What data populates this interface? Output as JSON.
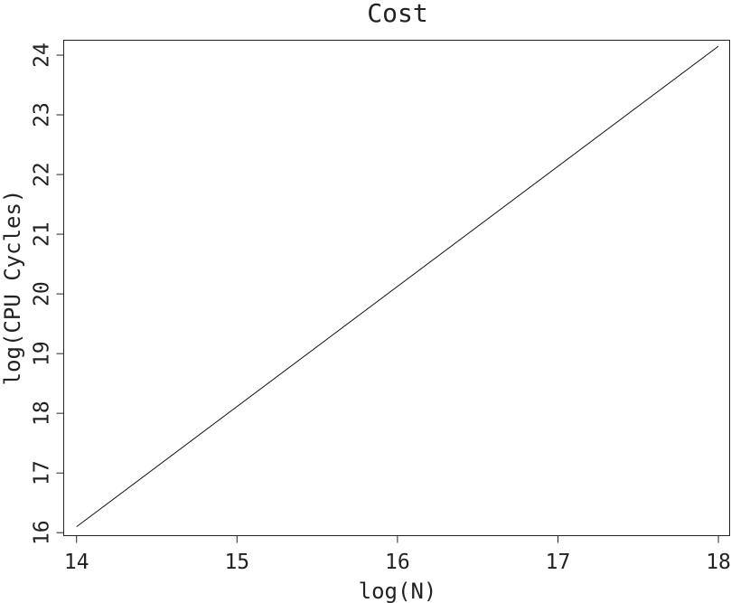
{
  "chart_data": {
    "type": "line",
    "title": "Cost",
    "xlabel": "log(N)",
    "ylabel": "log(CPU Cycles)",
    "xlim": [
      13.92,
      18.07
    ],
    "ylim": [
      15.95,
      24.25
    ],
    "x_ticks": [
      14,
      15,
      16,
      17,
      18
    ],
    "y_ticks": [
      16,
      17,
      18,
      19,
      20,
      21,
      22,
      23,
      24
    ],
    "grid": false,
    "series": [
      {
        "x": [
          14,
          18
        ],
        "y": [
          16.1,
          24.15
        ]
      }
    ]
  }
}
